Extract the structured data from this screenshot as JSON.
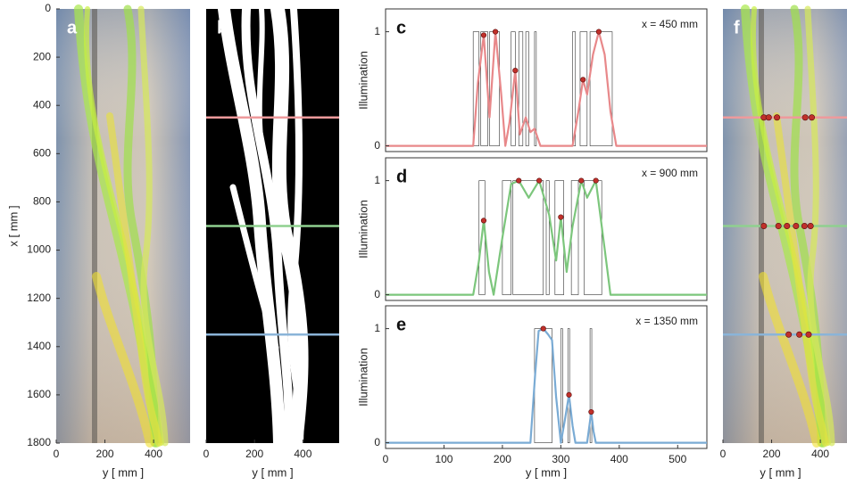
{
  "chart_data": [
    {
      "type": "image",
      "panel": "a",
      "xlabel": "y [ mm ]",
      "ylabel": "x [ mm ]",
      "xlim": [
        0,
        550
      ],
      "ylim": [
        0,
        1800
      ],
      "y_inverted": true,
      "xticks": [
        0,
        200,
        400
      ],
      "yticks": [
        0,
        200,
        400,
        600,
        800,
        1000,
        1200,
        1400,
        1600,
        1800
      ]
    },
    {
      "type": "image",
      "panel": "b",
      "xlabel": "y [ mm ]",
      "xlim": [
        0,
        550
      ],
      "ylim": [
        0,
        1800
      ],
      "y_inverted": true,
      "xticks": [
        0,
        200,
        400
      ],
      "transects": [
        {
          "x": 450,
          "color": "#ee9a9c"
        },
        {
          "x": 900,
          "color": "#8fd08f"
        },
        {
          "x": 1350,
          "color": "#8ab4d8"
        }
      ]
    },
    {
      "type": "line",
      "panel": "c",
      "annotation": "x = 450 mm",
      "ylabel": "Illumination",
      "xlim": [
        0,
        550
      ],
      "ylim": [
        -0.05,
        1.2
      ],
      "yticks": [
        0,
        1
      ],
      "series": [
        {
          "color": "#e8888a",
          "x": [
            0,
            150,
            158,
            168,
            178,
            188,
            198,
            205,
            212,
            222,
            230,
            240,
            248,
            255,
            265,
            320,
            330,
            338,
            345,
            355,
            365,
            375,
            385,
            395,
            550
          ],
          "values": [
            0,
            0,
            0.55,
            0.97,
            0.25,
            1.0,
            0.45,
            0,
            0.2,
            0.66,
            0.1,
            0.25,
            0.12,
            0.15,
            0,
            0,
            0.3,
            0.58,
            0.45,
            0.8,
            1.0,
            0.8,
            0.3,
            0,
            0
          ]
        }
      ],
      "peaks": {
        "color": "#c0302a",
        "x": [
          168,
          188,
          222,
          338,
          365
        ],
        "values": [
          0.97,
          1.0,
          0.66,
          0.58,
          1.0
        ]
      },
      "binary_segments": [
        [
          150,
          160
        ],
        [
          163,
          175
        ],
        [
          178,
          195
        ],
        [
          215,
          222
        ],
        [
          228,
          235
        ],
        [
          240,
          245
        ],
        [
          255,
          258
        ],
        [
          320,
          325
        ],
        [
          333,
          345
        ],
        [
          350,
          388
        ]
      ]
    },
    {
      "type": "line",
      "panel": "d",
      "annotation": "x = 900 mm",
      "ylabel": "Illumination",
      "xlim": [
        0,
        550
      ],
      "ylim": [
        -0.05,
        1.2
      ],
      "yticks": [
        0,
        1
      ],
      "series": [
        {
          "color": "#7cc67c",
          "x": [
            0,
            150,
            160,
            168,
            177,
            185,
            200,
            215,
            228,
            245,
            263,
            280,
            292,
            300,
            310,
            320,
            335,
            345,
            360,
            375,
            385,
            550
          ],
          "values": [
            0,
            0,
            0.3,
            0.65,
            0.2,
            0,
            0.5,
            0.97,
            1.0,
            0.85,
            1.0,
            0.7,
            0.3,
            0.68,
            0.2,
            0.6,
            1.0,
            0.85,
            1.0,
            0.4,
            0,
            0
          ]
        }
      ],
      "peaks": {
        "color": "#c0302a",
        "x": [
          168,
          228,
          263,
          300,
          335,
          360
        ],
        "values": [
          0.65,
          1.0,
          1.0,
          0.68,
          1.0,
          1.0
        ]
      },
      "binary_segments": [
        [
          160,
          170
        ],
        [
          200,
          215
        ],
        [
          218,
          270
        ],
        [
          275,
          280
        ],
        [
          290,
          305
        ],
        [
          318,
          330
        ],
        [
          340,
          370
        ]
      ]
    },
    {
      "type": "line",
      "panel": "e",
      "annotation": "x = 1350 mm",
      "ylabel": "Illumination",
      "xlabel": "y [ mm ]",
      "xlim": [
        0,
        550
      ],
      "ylim": [
        -0.05,
        1.2
      ],
      "xticks": [
        0,
        100,
        200,
        300,
        400,
        500
      ],
      "yticks": [
        0,
        1
      ],
      "series": [
        {
          "color": "#7aabd4",
          "x": [
            0,
            248,
            256,
            262,
            270,
            278,
            285,
            292,
            300,
            307,
            314,
            320,
            325,
            345,
            349,
            352,
            356,
            360,
            550
          ],
          "values": [
            0,
            0,
            0.6,
            0.98,
            1.0,
            0.95,
            0.9,
            0.4,
            0,
            0.2,
            0.42,
            0.15,
            0,
            0,
            0.15,
            0.27,
            0.1,
            0,
            0
          ]
        }
      ],
      "peaks": {
        "color": "#c0302a",
        "x": [
          270,
          314,
          352
        ],
        "values": [
          1.0,
          0.42,
          0.27
        ]
      },
      "binary_segments": [
        [
          255,
          285
        ],
        [
          300,
          303
        ],
        [
          312,
          315
        ],
        [
          350,
          353
        ]
      ]
    },
    {
      "type": "image",
      "panel": "f",
      "xlabel": "y [ mm ]",
      "xlim": [
        0,
        550
      ],
      "ylim": [
        0,
        1800
      ],
      "y_inverted": true,
      "xticks": [
        0,
        200,
        400
      ]
    }
  ]
}
